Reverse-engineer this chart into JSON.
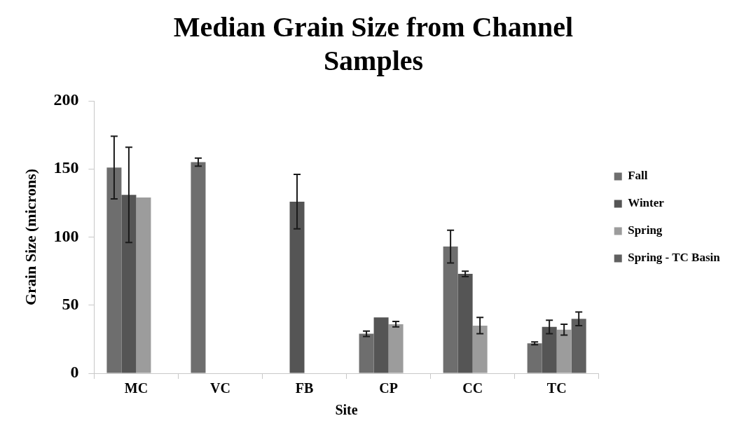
{
  "chart_data": {
    "type": "bar",
    "title": "Median Grain Size from Channel Samples",
    "xlabel": "Site",
    "ylabel": "Grain Size (microns)",
    "categories": [
      "MC",
      "VC",
      "FB",
      "CP",
      "CC",
      "TC"
    ],
    "series": [
      {
        "name": "Fall",
        "color": "#6e6e6e",
        "values": [
          151,
          155,
          null,
          29,
          93,
          22
        ],
        "errors": [
          23,
          3,
          null,
          2,
          12,
          1
        ]
      },
      {
        "name": "Winter",
        "color": "#555555",
        "values": [
          131,
          null,
          126,
          41,
          73,
          34
        ],
        "errors": [
          35,
          null,
          20,
          null,
          2,
          5
        ]
      },
      {
        "name": "Spring",
        "color": "#9c9c9c",
        "values": [
          129,
          null,
          null,
          36,
          35,
          32
        ],
        "errors": [
          null,
          null,
          null,
          2,
          6,
          4
        ]
      },
      {
        "name": "Spring - TC Basin",
        "color": "#606060",
        "values": [
          null,
          null,
          null,
          null,
          null,
          40
        ],
        "errors": [
          null,
          null,
          null,
          null,
          null,
          5
        ]
      }
    ],
    "ylim": [
      0,
      200
    ],
    "yticks": [
      0,
      50,
      100,
      150,
      200
    ],
    "legend": "right"
  }
}
